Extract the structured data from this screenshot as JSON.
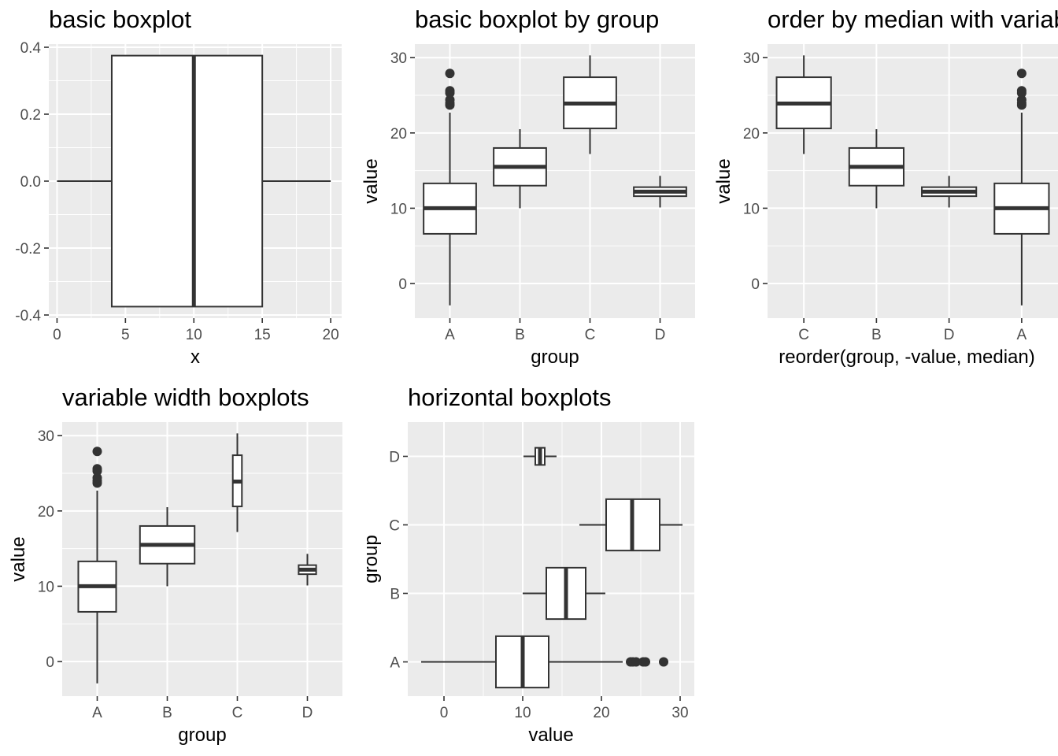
{
  "figure": {
    "background": "#ffffff",
    "panel_background": "#ebebeb",
    "grid_color": "#ffffff",
    "box_fill": "#ffffff",
    "line_color": "#333333"
  },
  "chart_data": [
    {
      "id": "p1",
      "type": "boxplot",
      "orientation": "horizontal",
      "title": "basic boxplot",
      "xlabel": "x",
      "ylabel": "",
      "xlim": [
        -0.6,
        20.8
      ],
      "ylim": [
        -0.4,
        0.4
      ],
      "x_ticks": [
        0,
        5,
        10,
        15,
        20
      ],
      "x_tick_labels": [
        "0",
        "5",
        "10",
        "15",
        "20"
      ],
      "y_ticks": [
        -0.4,
        -0.2,
        0.0,
        0.2,
        0.4
      ],
      "y_tick_labels": [
        "-0.4",
        "-0.2",
        "0.0",
        "0.2",
        "0.4"
      ],
      "grid": true,
      "boxes": [
        {
          "position": 0,
          "half_width": 0.375,
          "lower_whisker": 0,
          "q1": 4,
          "median": 10,
          "q3": 15,
          "upper_whisker": 20,
          "outliers": []
        }
      ]
    },
    {
      "id": "p2",
      "type": "boxplot",
      "orientation": "vertical",
      "title": "basic boxplot by group",
      "xlabel": "group",
      "ylabel": "value",
      "categories": [
        "A",
        "B",
        "C",
        "D"
      ],
      "ylim": [
        -4.6,
        31.8
      ],
      "y_ticks": [
        0,
        10,
        20,
        30
      ],
      "y_tick_labels": [
        "0",
        "10",
        "20",
        "30"
      ],
      "grid": true,
      "boxes": [
        {
          "category": "A",
          "half_width": 0.375,
          "lower_whisker": -2.9,
          "q1": 6.6,
          "median": 10.0,
          "q3": 13.3,
          "upper_whisker": 22.7,
          "outliers": [
            23.7,
            24.0,
            24.4,
            25.3,
            25.6,
            27.9
          ]
        },
        {
          "category": "B",
          "half_width": 0.375,
          "lower_whisker": 10.0,
          "q1": 13.0,
          "median": 15.5,
          "q3": 18.0,
          "upper_whisker": 20.5,
          "outliers": []
        },
        {
          "category": "C",
          "half_width": 0.375,
          "lower_whisker": 17.2,
          "q1": 20.6,
          "median": 23.9,
          "q3": 27.4,
          "upper_whisker": 30.3,
          "outliers": []
        },
        {
          "category": "D",
          "half_width": 0.375,
          "lower_whisker": 10.1,
          "q1": 11.6,
          "median": 12.2,
          "q3": 12.8,
          "upper_whisker": 14.3,
          "outliers": []
        }
      ]
    },
    {
      "id": "p3",
      "type": "boxplot",
      "orientation": "vertical",
      "title": "order by median with variable width",
      "xlabel": "reorder(group, -value, median)",
      "ylabel": "value",
      "categories": [
        "C",
        "B",
        "D",
        "A"
      ],
      "ylim": [
        -4.6,
        31.8
      ],
      "y_ticks": [
        0,
        10,
        20,
        30
      ],
      "y_tick_labels": [
        "0",
        "10",
        "20",
        "30"
      ],
      "grid": true,
      "boxes": [
        {
          "category": "C",
          "half_width": 0.375,
          "lower_whisker": 17.2,
          "q1": 20.6,
          "median": 23.9,
          "q3": 27.4,
          "upper_whisker": 30.3,
          "outliers": []
        },
        {
          "category": "B",
          "half_width": 0.375,
          "lower_whisker": 10.0,
          "q1": 13.0,
          "median": 15.5,
          "q3": 18.0,
          "upper_whisker": 20.5,
          "outliers": []
        },
        {
          "category": "D",
          "half_width": 0.375,
          "lower_whisker": 10.1,
          "q1": 11.6,
          "median": 12.2,
          "q3": 12.8,
          "upper_whisker": 14.3,
          "outliers": []
        },
        {
          "category": "A",
          "half_width": 0.375,
          "lower_whisker": -2.9,
          "q1": 6.6,
          "median": 10.0,
          "q3": 13.3,
          "upper_whisker": 22.7,
          "outliers": [
            23.7,
            24.0,
            24.4,
            25.3,
            25.6,
            27.9
          ]
        }
      ]
    },
    {
      "id": "p4",
      "type": "boxplot",
      "orientation": "vertical",
      "title": "variable width boxplots",
      "xlabel": "group",
      "ylabel": "value",
      "categories": [
        "A",
        "B",
        "C",
        "D"
      ],
      "ylim": [
        -4.6,
        31.8
      ],
      "y_ticks": [
        0,
        10,
        20,
        30
      ],
      "y_tick_labels": [
        "0",
        "10",
        "20",
        "30"
      ],
      "grid": true,
      "boxes": [
        {
          "category": "A",
          "half_width": 0.27,
          "lower_whisker": -2.9,
          "q1": 6.6,
          "median": 10.0,
          "q3": 13.3,
          "upper_whisker": 22.7,
          "outliers": [
            23.7,
            24.0,
            24.4,
            25.3,
            25.6,
            27.9
          ]
        },
        {
          "category": "B",
          "half_width": 0.39,
          "lower_whisker": 10.0,
          "q1": 13.0,
          "median": 15.5,
          "q3": 18.0,
          "upper_whisker": 20.5,
          "outliers": []
        },
        {
          "category": "C",
          "half_width": 0.065,
          "lower_whisker": 17.2,
          "q1": 20.6,
          "median": 23.9,
          "q3": 27.4,
          "upper_whisker": 30.3,
          "outliers": []
        },
        {
          "category": "D",
          "half_width": 0.125,
          "lower_whisker": 10.1,
          "q1": 11.6,
          "median": 12.2,
          "q3": 12.8,
          "upper_whisker": 14.3,
          "outliers": []
        }
      ]
    },
    {
      "id": "p5",
      "type": "boxplot",
      "orientation": "horizontal",
      "title": "horizontal boxplots",
      "xlabel": "value",
      "ylabel": "group",
      "categories": [
        "A",
        "B",
        "C",
        "D"
      ],
      "xlim": [
        -4.6,
        31.8
      ],
      "x_ticks": [
        0,
        10,
        20,
        30
      ],
      "x_tick_labels": [
        "0",
        "10",
        "20",
        "30"
      ],
      "grid": true,
      "boxes": [
        {
          "category": "A",
          "half_width": 0.375,
          "lower_whisker": -2.9,
          "q1": 6.6,
          "median": 10.0,
          "q3": 13.3,
          "upper_whisker": 22.7,
          "outliers": [
            23.7,
            24.0,
            24.4,
            25.3,
            25.6,
            27.9
          ]
        },
        {
          "category": "B",
          "half_width": 0.375,
          "lower_whisker": 10.0,
          "q1": 13.0,
          "median": 15.5,
          "q3": 18.0,
          "upper_whisker": 20.5,
          "outliers": []
        },
        {
          "category": "C",
          "half_width": 0.375,
          "lower_whisker": 17.2,
          "q1": 20.6,
          "median": 23.9,
          "q3": 27.4,
          "upper_whisker": 30.3,
          "outliers": []
        },
        {
          "category": "D",
          "half_width": 0.125,
          "lower_whisker": 10.1,
          "q1": 11.6,
          "median": 12.2,
          "q3": 12.8,
          "upper_whisker": 14.3,
          "outliers": []
        }
      ]
    }
  ]
}
